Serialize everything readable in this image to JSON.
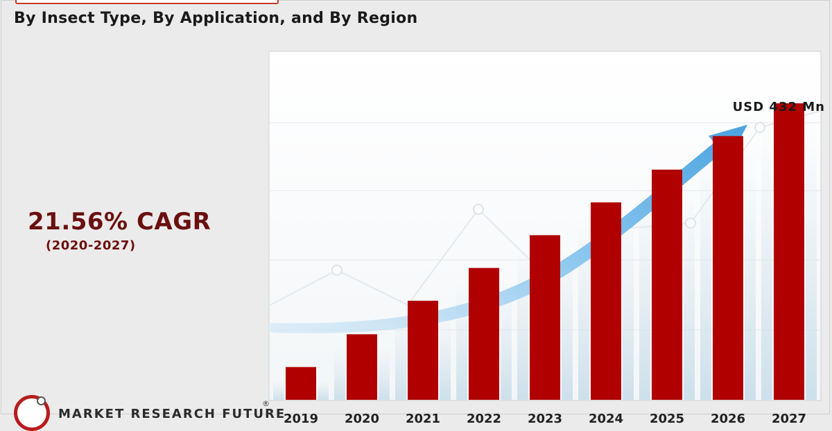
{
  "header": {
    "subtitle": "By Insect Type, By Application, and By Region"
  },
  "cagr": {
    "value": "21.56% CAGR",
    "period": "(2020-2027)"
  },
  "brand": {
    "name": "MARKET RESEARCH FUTURE",
    "registered": "®",
    "logo_icon": "mrfr-logo-icon"
  },
  "colors": {
    "bar": "#b00000",
    "cagr_text": "#6b0f0f",
    "arrow": "#5aaee6",
    "logo_ring": "#b71c1c"
  },
  "chart_data": {
    "type": "bar",
    "categories": [
      "2019",
      "2020",
      "2021",
      "2022",
      "2023",
      "2024",
      "2025",
      "2026",
      "2027"
    ],
    "values": [
      43,
      86,
      130,
      173,
      216,
      259,
      302,
      346,
      389
    ],
    "annotation": "USD 432 Mn",
    "grid": true
  }
}
